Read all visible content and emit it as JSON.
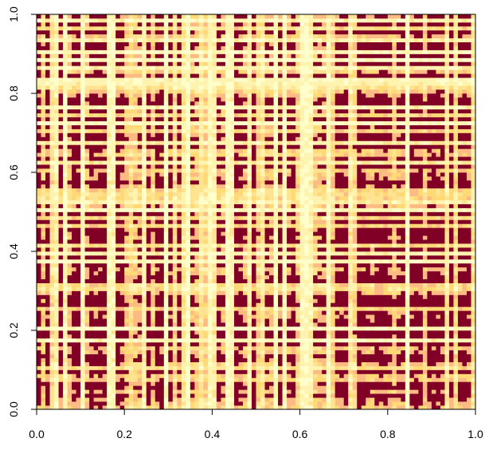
{
  "chart_data": {
    "type": "heatmap",
    "title": "",
    "xlabel": "",
    "ylabel": "",
    "xlim": [
      0,
      1
    ],
    "ylim": [
      0,
      1
    ],
    "x_ticks": [
      0.0,
      0.2,
      0.4,
      0.6,
      0.8,
      1.0
    ],
    "y_ticks": [
      0.0,
      0.2,
      0.4,
      0.6,
      0.8,
      1.0
    ],
    "x_tick_labels": [
      "0.0",
      "0.2",
      "0.4",
      "0.6",
      "0.8",
      "1.0"
    ],
    "y_tick_labels": [
      "0.0",
      "0.2",
      "0.4",
      "0.6",
      "0.8",
      "1.0"
    ],
    "grid": false,
    "legend": "none",
    "matrix_size": 100,
    "palette": [
      "#ffffcc",
      "#fff3b0",
      "#fee391",
      "#fed976",
      "#fdbb84",
      "#800026"
    ],
    "hot_rows": [
      0.03,
      0.05,
      0.09,
      0.12,
      0.13,
      0.16,
      0.18,
      0.21,
      0.26,
      0.28,
      0.29,
      0.32,
      0.33,
      0.36,
      0.45,
      0.47,
      0.49,
      0.58,
      0.61,
      0.66,
      0.73,
      0.77,
      0.78,
      0.84,
      0.87,
      0.91,
      0.92,
      0.95,
      0.97
    ],
    "hot_cols": [
      0.02,
      0.05,
      0.09,
      0.12,
      0.14,
      0.15,
      0.19,
      0.27,
      0.28,
      0.3,
      0.32,
      0.41,
      0.46,
      0.49,
      0.55,
      0.77,
      0.79,
      0.85,
      0.87,
      0.91,
      0.92,
      0.97
    ]
  }
}
